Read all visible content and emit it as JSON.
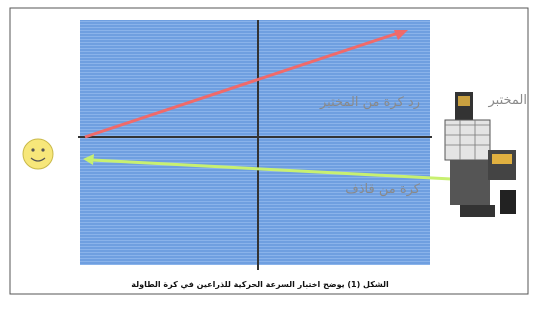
{
  "labels": {
    "tester": "المختبر",
    "return_ball": "رد كرة من المختبر",
    "launcher_ball": "كرة من قاذف"
  },
  "caption": "الشكل (1) يوضح اختبار السرعة الحركية للذراعين في كرة الطاولة"
}
